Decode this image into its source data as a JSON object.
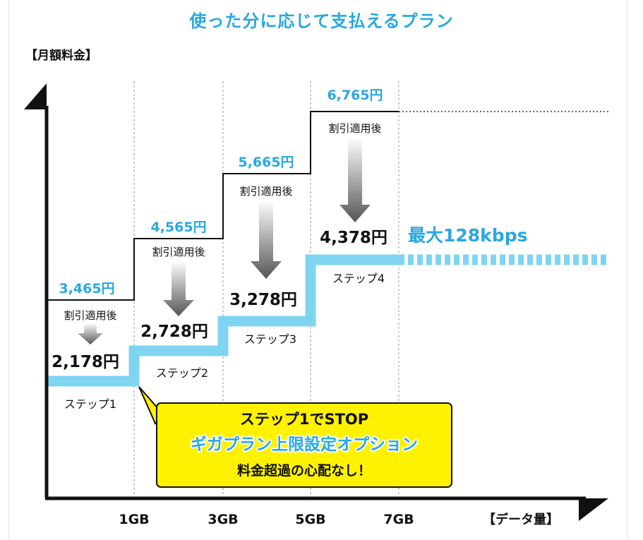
{
  "title": "使った分に応じて支払えるプラン",
  "chart_data": {
    "type": "line",
    "title": "使った分に応じて支払えるプラン",
    "ylabel": "【月額料金】",
    "xlabel": "【データ量】",
    "x_ticks": [
      "1GB",
      "3GB",
      "5GB",
      "7GB"
    ],
    "discount_label": "割引適用後",
    "steps": [
      {
        "name": "ステップ1",
        "regular": "3,465円",
        "discounted": "2,178円",
        "regular_value": 3465,
        "discounted_value": 2178
      },
      {
        "name": "ステップ2",
        "regular": "4,565円",
        "discounted": "2,728円",
        "regular_value": 4565,
        "discounted_value": 2728
      },
      {
        "name": "ステップ3",
        "regular": "5,665円",
        "discounted": "3,278円",
        "regular_value": 5665,
        "discounted_value": 3278
      },
      {
        "name": "ステップ4",
        "regular": "6,765円",
        "discounted": "4,378円",
        "regular_value": 6765,
        "discounted_value": 4378
      }
    ],
    "speed_label": "最大128kbps",
    "callout": {
      "line1": "ステップ1でSTOP",
      "line2": "ギガプラン上限設定オプション",
      "line3": "料金超過の心配なし！"
    },
    "colors": {
      "accent_blue": "#29a8e0",
      "step_line": "#7fd4f2",
      "callout_yellow": "#fff200"
    }
  }
}
